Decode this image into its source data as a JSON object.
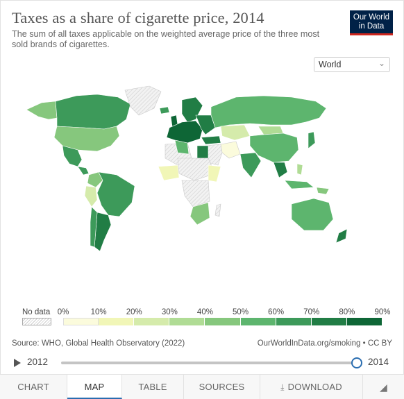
{
  "header": {
    "title": "Taxes as a share of cigarette price, 2014",
    "subtitle": "The sum of all taxes applicable on the weighted average price of the three most sold brands of cigarettes.",
    "logo_line1": "Our World",
    "logo_line2": "in Data"
  },
  "region_select": {
    "value": "World",
    "icon": "chevron-down-icon"
  },
  "legend": {
    "nodata_label": "No data",
    "ticks": [
      "0%",
      "10%",
      "20%",
      "30%",
      "40%",
      "50%",
      "60%",
      "70%",
      "80%",
      "90%"
    ],
    "colors": [
      "#fbfbdc",
      "#f1f6b7",
      "#d5ebab",
      "#b0dc95",
      "#86c77d",
      "#5db56e",
      "#3d9a5a",
      "#217d45",
      "#0e6636",
      "#04472a"
    ]
  },
  "footer": {
    "source": "Source: WHO, Global Health Observatory (2022)",
    "license": "OurWorldInData.org/smoking • CC BY"
  },
  "timeline": {
    "start_year": "2012",
    "end_year": "2014",
    "selected_year": "2014"
  },
  "tabs": [
    {
      "label": "CHART",
      "active": false
    },
    {
      "label": "MAP",
      "active": true
    },
    {
      "label": "TABLE",
      "active": false
    },
    {
      "label": "SOURCES",
      "active": false
    },
    {
      "label": "DOWNLOAD",
      "active": false,
      "icon": "download-icon"
    }
  ],
  "share_icon": "share-icon",
  "map": {
    "colors": {
      "nodata": "#ececec",
      "nodata_stroke": "#c9c9c9"
    }
  }
}
